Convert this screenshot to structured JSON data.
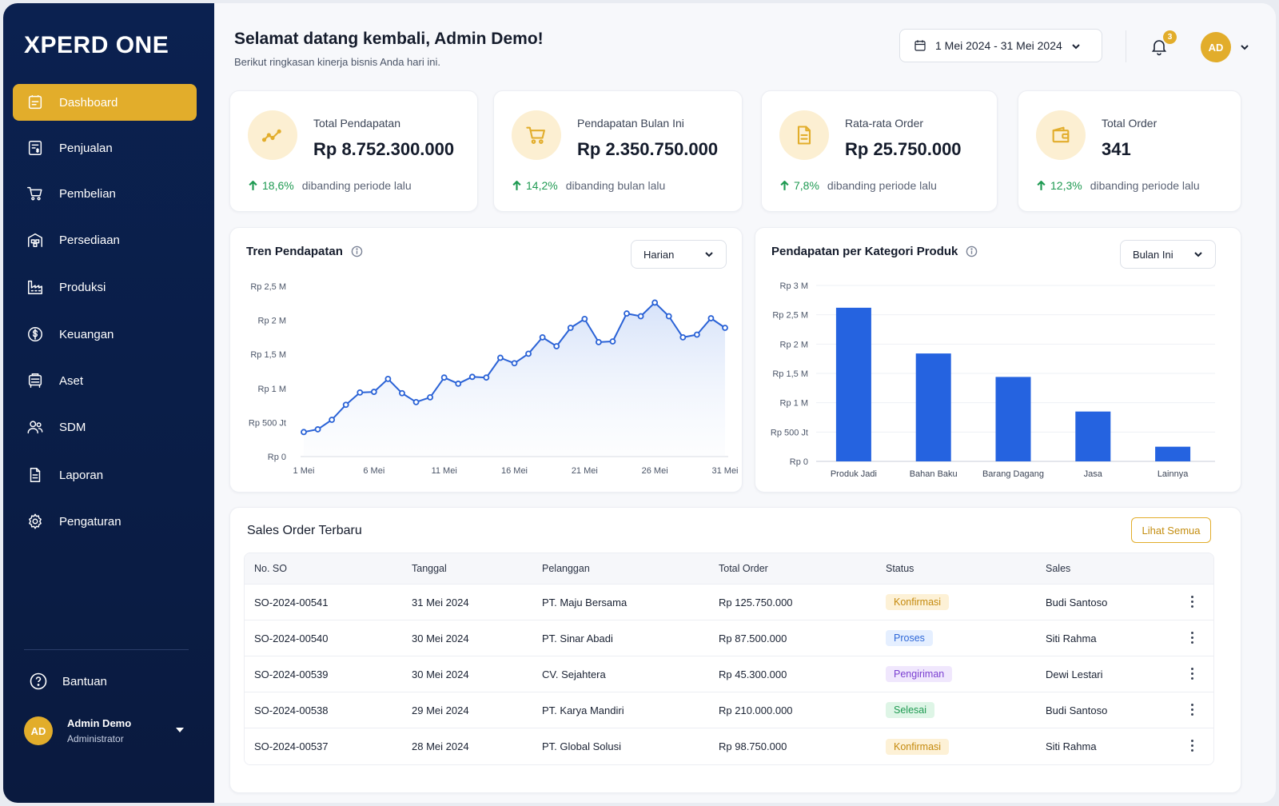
{
  "brand": "XPERD ONE",
  "colors": {
    "sidebar": "#0b2150",
    "accent": "#e2ad2b",
    "bar": "#2563e0",
    "line": "#2a62d6",
    "positive": "#1f9a52"
  },
  "sidebar": {
    "items": [
      {
        "label": "Dashboard",
        "icon": "dashboard-icon",
        "active": true
      },
      {
        "label": "Penjualan",
        "icon": "sales-invoice-icon"
      },
      {
        "label": "Pembelian",
        "icon": "cart-icon"
      },
      {
        "label": "Persediaan",
        "icon": "warehouse-icon"
      },
      {
        "label": "Produksi",
        "icon": "factory-icon"
      },
      {
        "label": "Keuangan",
        "icon": "dollar-circle-icon"
      },
      {
        "label": "Aset",
        "icon": "asset-icon"
      },
      {
        "label": "SDM",
        "icon": "users-icon"
      },
      {
        "label": "Laporan",
        "icon": "document-icon"
      },
      {
        "label": "Pengaturan",
        "icon": "gear-icon"
      }
    ],
    "help_label": "Bantuan",
    "user": {
      "initials": "AD",
      "name": "Admin Demo",
      "role": "Administrator"
    }
  },
  "header": {
    "greeting": "Selamat datang kembali, Admin Demo!",
    "subtitle": "Berikut ringkasan kinerja bisnis Anda hari ini.",
    "date_range": "1 Mei 2024 - 31 Mei 2024",
    "notification_count": "3",
    "avatar_initials": "AD"
  },
  "kpis": [
    {
      "label": "Total Pendapatan",
      "value": "Rp 8.752.300.000",
      "change": "18,6%",
      "compare": "dibanding periode lalu",
      "icon": "trend-up-icon"
    },
    {
      "label": "Pendapatan Bulan Ini",
      "value": "Rp 2.350.750.000",
      "change": "14,2%",
      "compare": "dibanding bulan lalu",
      "icon": "cart-icon"
    },
    {
      "label": "Rata-rata Order",
      "value": "Rp 25.750.000",
      "change": "7,8%",
      "compare": "dibanding periode lalu",
      "icon": "document-icon"
    },
    {
      "label": "Total Order",
      "value": "341",
      "change": "12,3%",
      "compare": "dibanding periode lalu",
      "icon": "wallet-icon"
    }
  ],
  "trend_panel": {
    "title": "Tren Pendapatan",
    "filter": "Harian"
  },
  "category_panel": {
    "title": "Pendapatan per Kategori Produk",
    "filter": "Bulan Ini"
  },
  "chart_data": [
    {
      "type": "line",
      "title": "Tren Pendapatan",
      "x": [
        1,
        2,
        3,
        4,
        5,
        6,
        7,
        8,
        9,
        10,
        11,
        12,
        13,
        14,
        15,
        16,
        17,
        18,
        19,
        20,
        21,
        22,
        23,
        24,
        25,
        26,
        27,
        28,
        29,
        30,
        31
      ],
      "x_tick_labels": [
        "1 Mei",
        "6 Mei",
        "11 Mei",
        "16 Mei",
        "21 Mei",
        "26 Mei",
        "31 Mei"
      ],
      "x_ticks": [
        1,
        6,
        11,
        16,
        21,
        26,
        31
      ],
      "y_tick_labels": [
        "Rp 0",
        "Rp 500 Jt",
        "Rp 1 M",
        "Rp 1,5 M",
        "Rp 2 M",
        "Rp 2,5 M"
      ],
      "y_ticks": [
        0,
        500,
        1000,
        1500,
        2000,
        2500
      ],
      "ylim": [
        0,
        2500
      ],
      "series": [
        {
          "values": [
            360,
            400,
            540,
            760,
            940,
            950,
            1140,
            930,
            800,
            870,
            1160,
            1070,
            1170,
            1160,
            1450,
            1370,
            1510,
            1750,
            1620,
            1890,
            2020,
            1680,
            1690,
            2100,
            2060,
            2260,
            2060,
            1750,
            1790,
            2030,
            1890
          ]
        }
      ],
      "area_fill": true
    },
    {
      "type": "bar",
      "title": "Pendapatan per Kategori Produk",
      "categories": [
        "Produk Jadi",
        "Bahan Baku",
        "Barang Dagang",
        "Jasa",
        "Lainnya"
      ],
      "values": [
        2620,
        1840,
        1440,
        850,
        250
      ],
      "y_tick_labels": [
        "Rp 0",
        "Rp 500 Jt",
        "Rp 1 M",
        "Rp 1,5 M",
        "Rp 2 M",
        "Rp 2,5 M",
        "Rp 3 M"
      ],
      "y_ticks": [
        0,
        500,
        1000,
        1500,
        2000,
        2500,
        3000
      ],
      "ylim": [
        0,
        3000
      ]
    }
  ],
  "orders": {
    "title": "Sales Order Terbaru",
    "view_all": "Lihat Semua",
    "columns": [
      "No. SO",
      "Tanggal",
      "Pelanggan",
      "Total Order",
      "Status",
      "Sales"
    ],
    "rows": [
      {
        "so": "SO-2024-00541",
        "date": "31 Mei 2024",
        "customer": "PT. Maju Bersama",
        "total": "Rp 125.750.000",
        "status": "Konfirmasi",
        "status_key": "konfirmasi",
        "sales": "Budi Santoso"
      },
      {
        "so": "SO-2024-00540",
        "date": "30 Mei 2024",
        "customer": "PT. Sinar Abadi",
        "total": "Rp 87.500.000",
        "status": "Proses",
        "status_key": "proses",
        "sales": "Siti Rahma"
      },
      {
        "so": "SO-2024-00539",
        "date": "30 Mei 2024",
        "customer": "CV. Sejahtera",
        "total": "Rp 45.300.000",
        "status": "Pengiriman",
        "status_key": "pengiriman",
        "sales": "Dewi Lestari"
      },
      {
        "so": "SO-2024-00538",
        "date": "29 Mei 2024",
        "customer": "PT. Karya Mandiri",
        "total": "Rp 210.000.000",
        "status": "Selesai",
        "status_key": "selesai",
        "sales": "Budi Santoso"
      },
      {
        "so": "SO-2024-00537",
        "date": "28 Mei 2024",
        "customer": "PT. Global Solusi",
        "total": "Rp 98.750.000",
        "status": "Konfirmasi",
        "status_key": "konfirmasi",
        "sales": "Siti Rahma"
      }
    ]
  }
}
